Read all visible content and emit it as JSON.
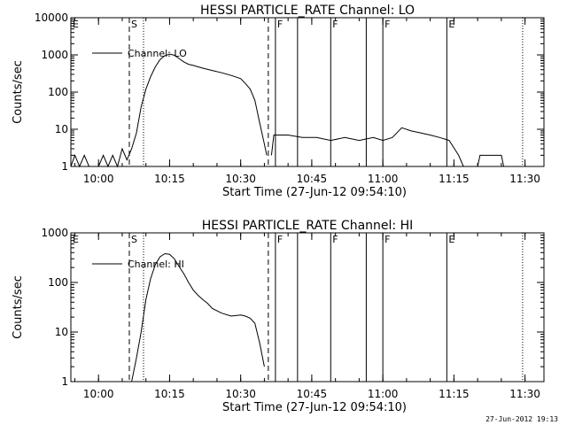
{
  "chart_data": [
    {
      "type": "line",
      "title": "HESSI PARTICLE_RATE Channel: LO",
      "xlabel": "Start Time (27-Jun-12 09:54:10)",
      "ylabel": "Counts/sec",
      "yscale": "log",
      "ylim": [
        1,
        10000
      ],
      "xlim": [
        "09:54:10",
        "11:34:00"
      ],
      "xticks": [
        "10:00",
        "10:15",
        "10:30",
        "10:45",
        "11:00",
        "11:15",
        "11:30"
      ],
      "yticks": [
        "1",
        "10",
        "100",
        "1000",
        "10000"
      ],
      "legend": "top-left",
      "series": [
        {
          "name": "Channel: LO",
          "segments": [
            {
              "x": [
                "09:54:10",
                "09:55:00",
                "09:56:00",
                "09:57:00",
                "09:58:00",
                "09:59:00",
                "10:00:00",
                "10:01:00",
                "10:02:00",
                "10:03:00",
                "10:04:00",
                "10:05:00",
                "10:06:00",
                "10:07:00",
                "10:08:00",
                "10:09:00",
                "10:10:00",
                "10:11:00",
                "10:12:00",
                "10:13:00",
                "10:14:00",
                "10:15:00",
                "10:16:00",
                "10:17:00",
                "10:18:00",
                "10:19:00",
                "10:20:00",
                "10:22:00",
                "10:24:00",
                "10:26:00",
                "10:28:00",
                "10:30:00",
                "10:31:00",
                "10:32:00",
                "10:33:00",
                "10:34:00",
                "10:35:00",
                "10:35:30"
              ],
              "y": [
                1,
                2,
                1,
                2,
                1,
                1,
                1,
                2,
                1,
                2,
                1,
                3,
                1.5,
                3,
                8,
                40,
                120,
                260,
                480,
                750,
                950,
                1050,
                980,
                800,
                650,
                560,
                520,
                440,
                380,
                330,
                280,
                230,
                170,
                120,
                60,
                15,
                4,
                2
              ]
            },
            {
              "x": [
                "10:36:30",
                "10:37:00",
                "10:40:00",
                "10:43:00",
                "10:46:00",
                "10:49:00",
                "10:52:00",
                "10:55:00",
                "10:58:00",
                "11:00:00",
                "11:02:00",
                "11:04:00",
                "11:06:00",
                "11:08:00",
                "11:10:00",
                "11:12:00",
                "11:14:00",
                "11:16:00",
                "11:17:00"
              ],
              "y": [
                2,
                7,
                7,
                6,
                6,
                5,
                6,
                5,
                6,
                5,
                6,
                11,
                9,
                8,
                7,
                6,
                5,
                2,
                1
              ]
            },
            {
              "x": [
                "11:20:00",
                "11:20:30",
                "11:25:00",
                "11:25:30"
              ],
              "y": [
                1,
                2,
                2,
                1
              ]
            }
          ]
        }
      ]
    },
    {
      "type": "line",
      "title": "HESSI PARTICLE_RATE Channel: HI",
      "xlabel": "Start Time (27-Jun-12 09:54:10)",
      "ylabel": "Counts/sec",
      "yscale": "log",
      "ylim": [
        1,
        1000
      ],
      "xlim": [
        "09:54:10",
        "11:34:00"
      ],
      "xticks": [
        "10:00",
        "10:15",
        "10:30",
        "10:45",
        "11:00",
        "11:15",
        "11:30"
      ],
      "yticks": [
        "1",
        "10",
        "100",
        "1000"
      ],
      "legend": "top-left",
      "series": [
        {
          "name": "Channel: HI",
          "segments": [
            {
              "x": [
                "10:07:00",
                "10:08:00",
                "10:09:00",
                "10:10:00",
                "10:11:00",
                "10:12:00",
                "10:13:00",
                "10:14:00",
                "10:15:00",
                "10:16:00",
                "10:17:00",
                "10:18:00",
                "10:19:00",
                "10:20:00",
                "10:21:00",
                "10:22:00",
                "10:23:00",
                "10:24:00",
                "10:26:00",
                "10:28:00",
                "10:30:00",
                "10:31:00",
                "10:32:00",
                "10:33:00",
                "10:34:00",
                "10:35:00"
              ],
              "y": [
                1,
                3,
                10,
                45,
                120,
                230,
                330,
                380,
                370,
                300,
                210,
                150,
                100,
                70,
                55,
                45,
                38,
                30,
                24,
                21,
                22,
                21,
                19,
                15,
                6,
                2
              ]
            }
          ]
        }
      ]
    }
  ],
  "markers": {
    "dashed": [
      "10:06:30",
      "10:35:50"
    ],
    "dotted": [
      "10:09:30",
      "11:29:30"
    ],
    "solid": [
      "10:37:20",
      "10:42:00",
      "10:49:00",
      "10:56:30",
      "11:00:00",
      "11:13:30"
    ],
    "letters": [
      {
        "label": "E",
        "time": "09:54:10"
      },
      {
        "label": "S",
        "time": "10:06:30"
      },
      {
        "label": "F",
        "time": "10:37:20"
      },
      {
        "label": "F",
        "time": "10:49:00"
      },
      {
        "label": "F",
        "time": "11:00:00"
      },
      {
        "label": "E",
        "time": "11:13:30"
      }
    ]
  },
  "timestamp": "27-Jun-2012 19:13"
}
